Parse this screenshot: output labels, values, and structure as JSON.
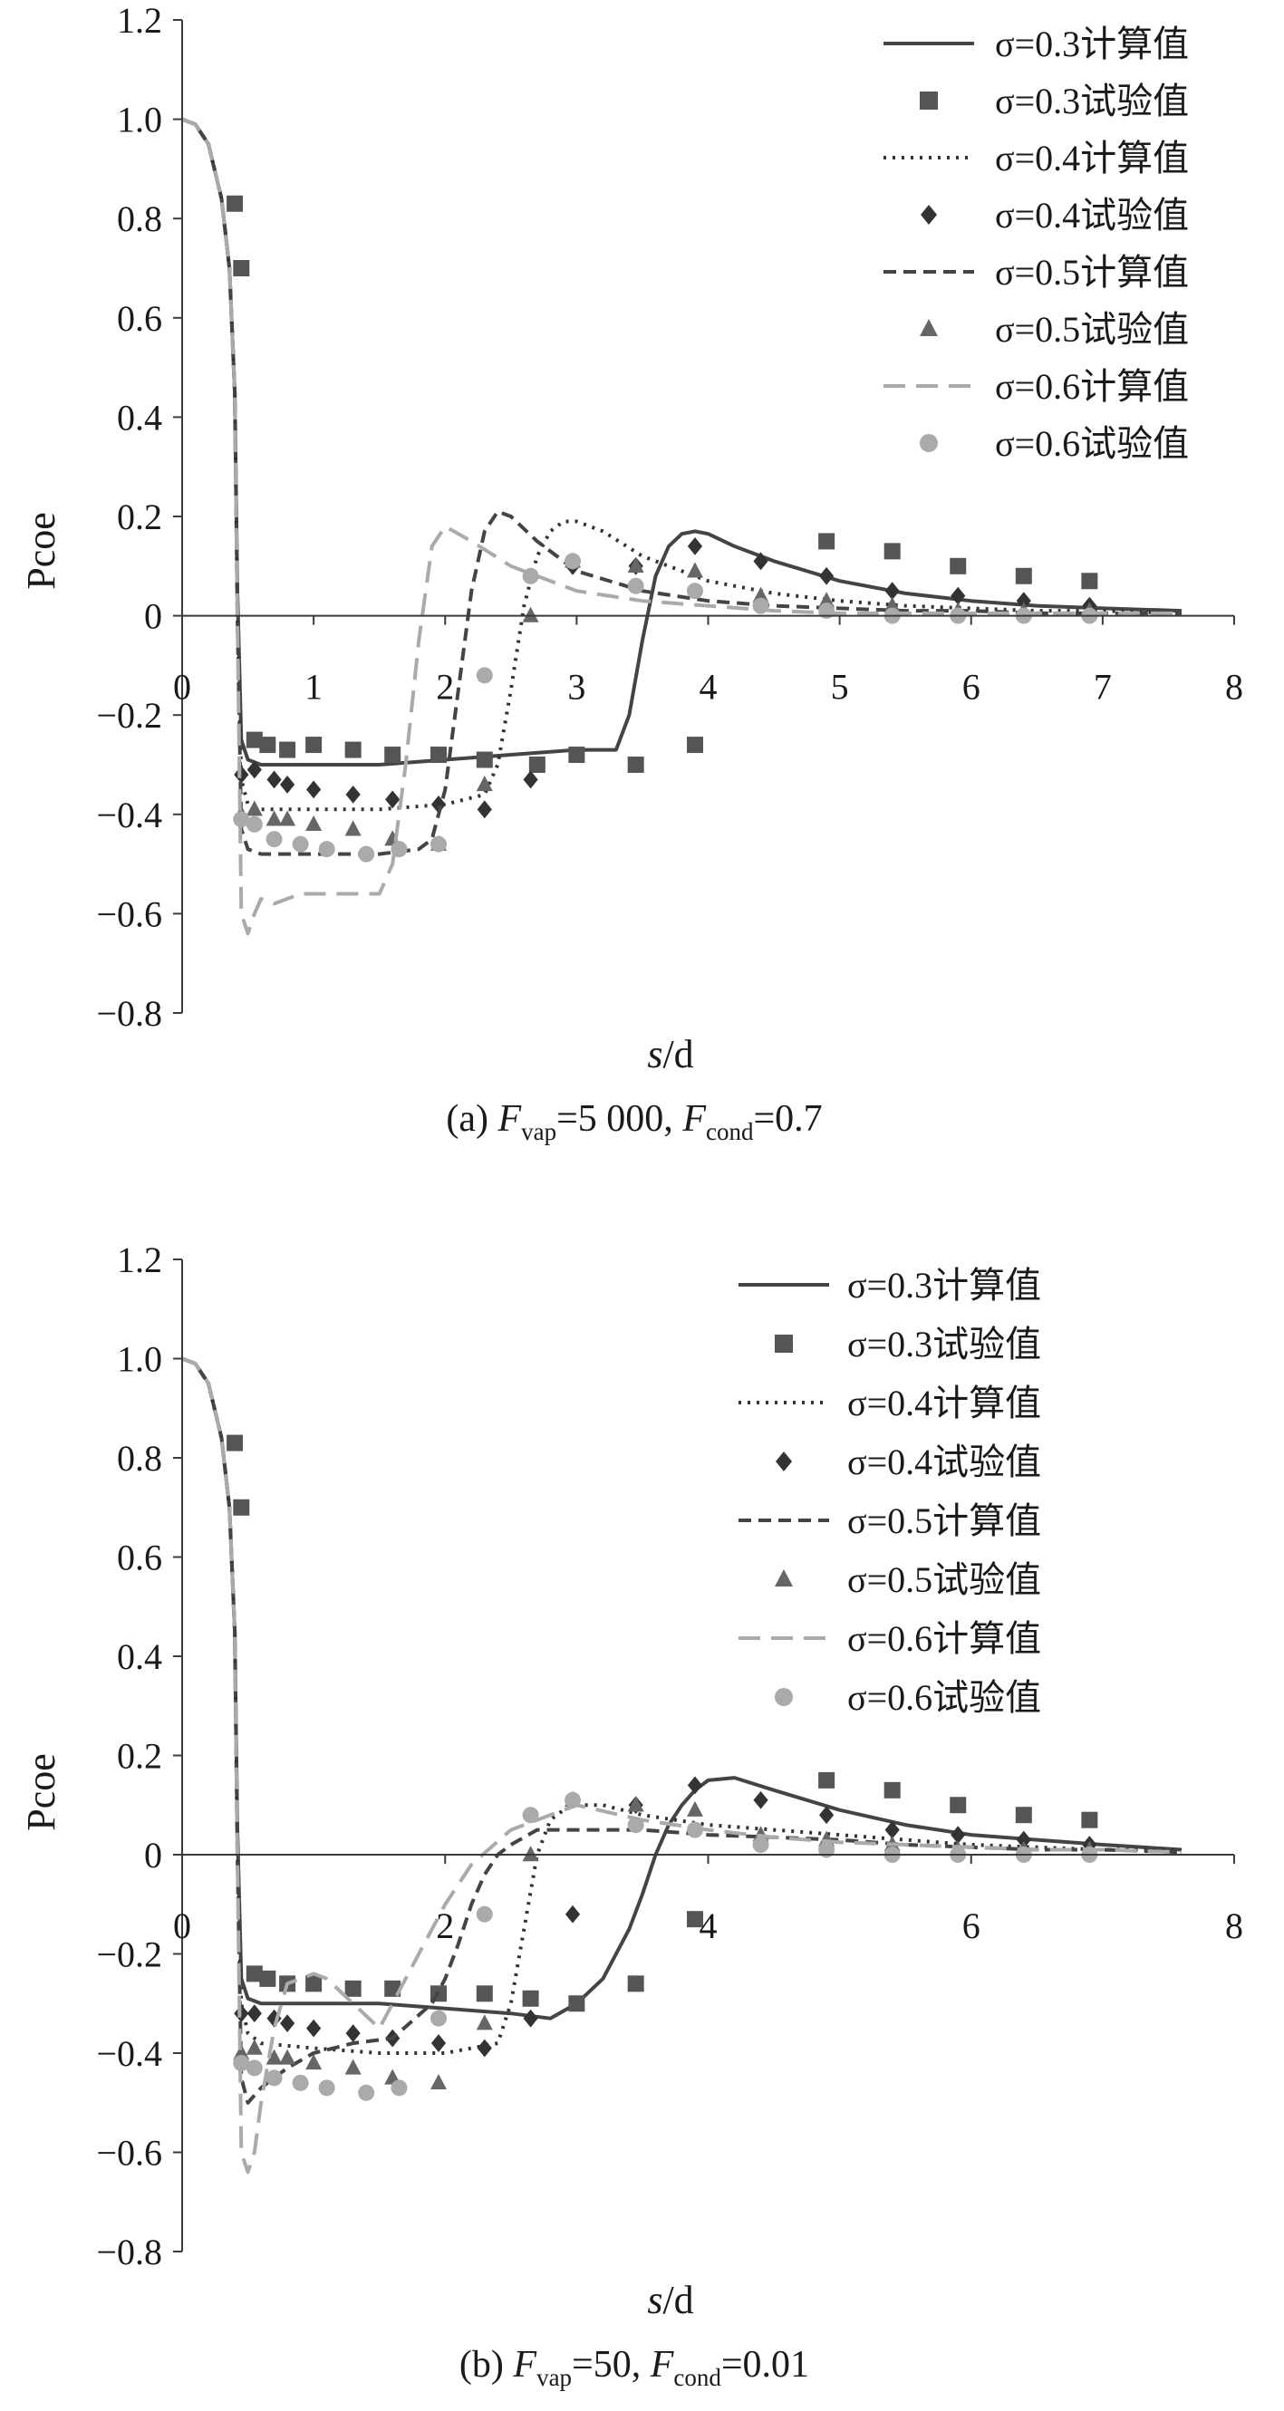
{
  "figure": {
    "panels": [
      {
        "caption": {
          "prefix": "(a) ",
          "f1": "F",
          "f1_sub": "vap",
          "mid": "=5 000,  ",
          "f2": "F",
          "f2_sub": "cond",
          "suffix": "=0.7"
        }
      },
      {
        "caption": {
          "prefix": "(b) ",
          "f1": "F",
          "f1_sub": "vap",
          "mid": "=50,  ",
          "f2": "F",
          "f2_sub": "cond",
          "suffix": "=0.01"
        }
      }
    ]
  },
  "chart_data": [
    {
      "type": "line",
      "title": "",
      "xlabel": "s/d",
      "xlabel_italic": "s",
      "xlabel_rest": "/d",
      "ylabel": "Pcoe",
      "xlim": [
        0,
        8
      ],
      "ylim": [
        -0.8,
        1.2
      ],
      "xticks": [
        0,
        1,
        2,
        3,
        4,
        5,
        6,
        7,
        8
      ],
      "yticks": [
        1.2,
        1.0,
        0.8,
        0.6,
        0.4,
        0.2,
        0,
        -0.2,
        -0.4,
        -0.6,
        -0.8
      ],
      "ytick_labels": [
        "1.2",
        "1.0",
        "0.8",
        "0.6",
        "0.4",
        "0.2",
        "0",
        "−0.2",
        "−0.4",
        "−0.6",
        "−0.8"
      ],
      "grid": false,
      "legend_position": "top-right",
      "series": [
        {
          "name": "σ=0.3计算值",
          "kind": "line",
          "style": "solid",
          "color": "#444444",
          "x": [
            0,
            0.1,
            0.2,
            0.3,
            0.36,
            0.4,
            0.42,
            0.45,
            0.5,
            0.6,
            1.0,
            1.5,
            2.0,
            2.5,
            3.0,
            3.2,
            3.3,
            3.4,
            3.5,
            3.6,
            3.7,
            3.8,
            3.9,
            4.0,
            4.2,
            4.5,
            5.0,
            5.5,
            6.0,
            6.5,
            7.0,
            7.6
          ],
          "y": [
            1.0,
            0.99,
            0.95,
            0.84,
            0.7,
            0.45,
            0.05,
            -0.25,
            -0.29,
            -0.3,
            -0.3,
            -0.3,
            -0.29,
            -0.28,
            -0.27,
            -0.27,
            -0.27,
            -0.2,
            -0.05,
            0.08,
            0.14,
            0.165,
            0.17,
            0.165,
            0.14,
            0.11,
            0.07,
            0.045,
            0.03,
            0.02,
            0.015,
            0.01
          ]
        },
        {
          "name": "σ=0.3试验值",
          "kind": "marker",
          "marker": "square",
          "color": "#555555",
          "x": [
            0.4,
            0.45,
            0.55,
            0.65,
            0.8,
            1.0,
            1.3,
            1.6,
            1.95,
            2.3,
            2.7,
            3.0,
            3.45,
            3.9,
            4.9,
            5.4,
            5.9,
            6.4,
            6.9
          ],
          "y": [
            0.83,
            0.7,
            -0.25,
            -0.26,
            -0.27,
            -0.26,
            -0.27,
            -0.28,
            -0.28,
            -0.29,
            -0.3,
            -0.28,
            -0.3,
            -0.26,
            0.15,
            0.13,
            0.1,
            0.08,
            0.07
          ]
        },
        {
          "name": "σ=0.4计算值",
          "kind": "line",
          "style": "dotted",
          "color": "#333333",
          "x": [
            0,
            0.1,
            0.2,
            0.3,
            0.36,
            0.4,
            0.42,
            0.45,
            0.5,
            0.6,
            1.0,
            1.5,
            2.0,
            2.3,
            2.4,
            2.5,
            2.6,
            2.7,
            2.8,
            2.9,
            3.0,
            3.2,
            3.5,
            4.0,
            4.5,
            5.0,
            5.5,
            6.0,
            6.5,
            7.0,
            7.6
          ],
          "y": [
            1.0,
            0.99,
            0.95,
            0.84,
            0.7,
            0.45,
            0.0,
            -0.33,
            -0.38,
            -0.39,
            -0.39,
            -0.39,
            -0.38,
            -0.36,
            -0.3,
            -0.15,
            0.02,
            0.12,
            0.17,
            0.19,
            0.19,
            0.17,
            0.12,
            0.07,
            0.045,
            0.03,
            0.02,
            0.015,
            0.01,
            0.01,
            0.005
          ]
        },
        {
          "name": "σ=0.4试验值",
          "kind": "marker",
          "marker": "diamond",
          "color": "#333333",
          "x": [
            0.45,
            0.55,
            0.7,
            0.8,
            1.0,
            1.3,
            1.6,
            1.95,
            2.3,
            2.65,
            2.97,
            3.45,
            3.9,
            4.4,
            4.9,
            5.4,
            5.9,
            6.4,
            6.9
          ],
          "y": [
            -0.32,
            -0.31,
            -0.33,
            -0.34,
            -0.35,
            -0.36,
            -0.37,
            -0.38,
            -0.39,
            -0.33,
            0.1,
            0.1,
            0.14,
            0.11,
            0.08,
            0.05,
            0.04,
            0.03,
            0.02
          ]
        },
        {
          "name": "σ=0.5计算值",
          "kind": "line",
          "style": "dashed",
          "color": "#444444",
          "x": [
            0,
            0.1,
            0.2,
            0.3,
            0.36,
            0.4,
            0.42,
            0.45,
            0.5,
            0.6,
            1.0,
            1.5,
            1.8,
            1.9,
            2.0,
            2.1,
            2.2,
            2.3,
            2.4,
            2.5,
            2.7,
            3.0,
            3.5,
            4.0,
            4.5,
            5.0,
            5.5,
            6.0,
            6.5,
            7.0,
            7.6
          ],
          "y": [
            1.0,
            0.99,
            0.95,
            0.84,
            0.7,
            0.45,
            0.0,
            -0.43,
            -0.47,
            -0.48,
            -0.48,
            -0.48,
            -0.47,
            -0.45,
            -0.35,
            -0.15,
            0.05,
            0.17,
            0.21,
            0.2,
            0.15,
            0.09,
            0.05,
            0.03,
            0.02,
            0.015,
            0.01,
            0.01,
            0.005,
            0.005,
            0.005
          ]
        },
        {
          "name": "σ=0.5试验值",
          "kind": "marker",
          "marker": "triangle",
          "color": "#666666",
          "x": [
            0.45,
            0.55,
            0.7,
            0.8,
            1.0,
            1.3,
            1.6,
            1.95,
            2.3,
            2.65,
            2.97,
            3.45,
            3.9,
            4.4,
            4.9,
            5.4,
            5.9,
            6.4,
            6.9
          ],
          "y": [
            -0.4,
            -0.39,
            -0.41,
            -0.41,
            -0.42,
            -0.43,
            -0.45,
            -0.46,
            -0.34,
            0.0,
            0.11,
            0.1,
            0.09,
            0.04,
            0.03,
            0.02,
            0.01,
            0.01,
            0.01
          ]
        },
        {
          "name": "σ=0.6计算值",
          "kind": "line",
          "style": "longdash",
          "color": "#aaaaaa",
          "x": [
            0,
            0.1,
            0.2,
            0.3,
            0.36,
            0.4,
            0.42,
            0.45,
            0.5,
            0.55,
            0.6,
            0.7,
            0.9,
            1.2,
            1.5,
            1.6,
            1.7,
            1.8,
            1.9,
            2.0,
            2.2,
            2.5,
            3.0,
            3.5,
            4.0,
            4.5,
            5.0,
            5.5,
            6.0,
            6.5,
            7.0,
            7.6
          ],
          "y": [
            1.0,
            0.99,
            0.95,
            0.84,
            0.7,
            0.45,
            0.0,
            -0.6,
            -0.64,
            -0.6,
            -0.57,
            -0.58,
            -0.56,
            -0.56,
            -0.56,
            -0.5,
            -0.3,
            -0.05,
            0.14,
            0.18,
            0.15,
            0.1,
            0.05,
            0.03,
            0.02,
            0.01,
            0.005,
            0.005,
            0.005,
            0.005,
            0.005,
            0.005
          ]
        },
        {
          "name": "σ=0.6试验值",
          "kind": "marker",
          "marker": "circle",
          "color": "#aaaaaa",
          "x": [
            0.45,
            0.55,
            0.7,
            0.9,
            1.1,
            1.4,
            1.65,
            1.95,
            2.3,
            2.65,
            2.97,
            3.45,
            3.9,
            4.4,
            4.9,
            5.4,
            5.9,
            6.4,
            6.9
          ],
          "y": [
            -0.41,
            -0.42,
            -0.45,
            -0.46,
            -0.47,
            -0.48,
            -0.47,
            -0.46,
            -0.12,
            0.08,
            0.11,
            0.06,
            0.05,
            0.02,
            0.01,
            0.0,
            0.0,
            0.0,
            0.0
          ]
        }
      ]
    },
    {
      "type": "line",
      "title": "",
      "xlabel": "s/d",
      "xlabel_italic": "s",
      "xlabel_rest": "/d",
      "ylabel": "Pcoe",
      "xlim": [
        0,
        8
      ],
      "ylim": [
        -0.8,
        1.2
      ],
      "xticks": [
        0,
        2,
        4,
        6,
        8
      ],
      "yticks": [
        1.2,
        1.0,
        0.8,
        0.6,
        0.4,
        0.2,
        0,
        -0.2,
        -0.4,
        -0.6,
        -0.8
      ],
      "ytick_labels": [
        "1.2",
        "1.0",
        "0.8",
        "0.6",
        "0.4",
        "0.2",
        "0",
        "−0.2",
        "−0.4",
        "−0.6",
        "−0.8"
      ],
      "grid": false,
      "legend_position": "top-right",
      "series": [
        {
          "name": "σ=0.3计算值",
          "kind": "line",
          "style": "solid",
          "color": "#444444",
          "x": [
            0,
            0.1,
            0.2,
            0.3,
            0.36,
            0.4,
            0.42,
            0.45,
            0.5,
            0.6,
            1.0,
            1.5,
            2.0,
            2.5,
            2.8,
            3.0,
            3.2,
            3.4,
            3.5,
            3.6,
            3.7,
            3.8,
            3.9,
            4.0,
            4.2,
            4.5,
            5.0,
            5.5,
            6.0,
            6.5,
            7.0,
            7.6
          ],
          "y": [
            1.0,
            0.99,
            0.95,
            0.84,
            0.7,
            0.45,
            0.05,
            -0.25,
            -0.29,
            -0.3,
            -0.3,
            -0.3,
            -0.31,
            -0.32,
            -0.33,
            -0.3,
            -0.25,
            -0.15,
            -0.08,
            0.0,
            0.06,
            0.1,
            0.13,
            0.15,
            0.155,
            0.13,
            0.09,
            0.06,
            0.04,
            0.03,
            0.02,
            0.01
          ]
        },
        {
          "name": "σ=0.3试验值",
          "kind": "marker",
          "marker": "square",
          "color": "#555555",
          "x": [
            0.4,
            0.45,
            0.55,
            0.65,
            0.8,
            1.0,
            1.3,
            1.6,
            1.95,
            2.3,
            2.65,
            3.0,
            3.45,
            3.9,
            4.9,
            5.4,
            5.9,
            6.4,
            6.9
          ],
          "y": [
            0.83,
            0.7,
            -0.24,
            -0.25,
            -0.26,
            -0.26,
            -0.27,
            -0.27,
            -0.28,
            -0.28,
            -0.29,
            -0.3,
            -0.26,
            -0.13,
            0.15,
            0.13,
            0.1,
            0.08,
            0.07
          ]
        },
        {
          "name": "σ=0.4计算值",
          "kind": "line",
          "style": "dotted",
          "color": "#333333",
          "x": [
            0,
            0.1,
            0.2,
            0.3,
            0.36,
            0.4,
            0.42,
            0.45,
            0.5,
            0.6,
            1.0,
            1.5,
            2.0,
            2.4,
            2.5,
            2.6,
            2.7,
            2.8,
            2.9,
            3.0,
            3.2,
            3.5,
            4.0,
            4.5,
            5.0,
            5.5,
            6.0,
            6.5,
            7.0,
            7.6
          ],
          "y": [
            1.0,
            0.99,
            0.95,
            0.84,
            0.7,
            0.45,
            0.0,
            -0.3,
            -0.36,
            -0.38,
            -0.39,
            -0.4,
            -0.4,
            -0.38,
            -0.3,
            -0.15,
            0.0,
            0.07,
            0.09,
            0.1,
            0.1,
            0.08,
            0.06,
            0.05,
            0.04,
            0.03,
            0.02,
            0.015,
            0.01,
            0.01
          ]
        },
        {
          "name": "σ=0.4试验值",
          "kind": "marker",
          "marker": "diamond",
          "color": "#333333",
          "x": [
            0.45,
            0.55,
            0.7,
            0.8,
            1.0,
            1.3,
            1.6,
            1.95,
            2.3,
            2.65,
            2.97,
            3.45,
            3.9,
            4.4,
            4.9,
            5.4,
            5.9,
            6.4,
            6.9
          ],
          "y": [
            -0.32,
            -0.32,
            -0.33,
            -0.34,
            -0.35,
            -0.36,
            -0.37,
            -0.38,
            -0.39,
            -0.33,
            -0.12,
            0.1,
            0.14,
            0.11,
            0.08,
            0.05,
            0.04,
            0.03,
            0.02
          ]
        },
        {
          "name": "σ=0.5计算值",
          "kind": "line",
          "style": "dashed",
          "color": "#444444",
          "x": [
            0,
            0.1,
            0.2,
            0.3,
            0.36,
            0.4,
            0.42,
            0.45,
            0.5,
            0.6,
            0.8,
            1.0,
            1.3,
            1.6,
            1.9,
            2.0,
            2.1,
            2.2,
            2.3,
            2.4,
            2.5,
            2.7,
            3.0,
            3.5,
            4.0,
            4.5,
            5.0,
            5.5,
            6.0,
            6.5,
            7.0,
            7.6
          ],
          "y": [
            1.0,
            0.99,
            0.95,
            0.84,
            0.7,
            0.45,
            0.0,
            -0.45,
            -0.5,
            -0.47,
            -0.43,
            -0.4,
            -0.38,
            -0.37,
            -0.3,
            -0.25,
            -0.18,
            -0.1,
            -0.04,
            0.0,
            0.02,
            0.05,
            0.05,
            0.05,
            0.04,
            0.035,
            0.03,
            0.02,
            0.015,
            0.01,
            0.01,
            0.005
          ]
        },
        {
          "name": "σ=0.5试验值",
          "kind": "marker",
          "marker": "triangle",
          "color": "#666666",
          "x": [
            0.45,
            0.55,
            0.7,
            0.8,
            1.0,
            1.3,
            1.6,
            1.95,
            2.3,
            2.65,
            2.97,
            3.45,
            3.9,
            4.4,
            4.9,
            5.4,
            5.9,
            6.4,
            6.9
          ],
          "y": [
            -0.4,
            -0.39,
            -0.41,
            -0.41,
            -0.42,
            -0.43,
            -0.45,
            -0.46,
            -0.34,
            0.0,
            0.11,
            0.1,
            0.09,
            0.04,
            0.03,
            0.02,
            0.01,
            0.01,
            0.01
          ]
        },
        {
          "name": "σ=0.6计算值",
          "kind": "line",
          "style": "longdash",
          "color": "#aaaaaa",
          "x": [
            0,
            0.1,
            0.2,
            0.3,
            0.36,
            0.4,
            0.42,
            0.45,
            0.5,
            0.55,
            0.6,
            0.7,
            0.8,
            0.9,
            1.0,
            1.1,
            1.3,
            1.5,
            1.6,
            1.8,
            2.0,
            2.2,
            2.5,
            3.0,
            3.5,
            4.0,
            4.5,
            5.0,
            5.5,
            6.0,
            6.5,
            7.0,
            7.6
          ],
          "y": [
            1.0,
            0.99,
            0.95,
            0.84,
            0.7,
            0.45,
            0.0,
            -0.6,
            -0.64,
            -0.6,
            -0.5,
            -0.35,
            -0.26,
            -0.25,
            -0.24,
            -0.25,
            -0.3,
            -0.35,
            -0.3,
            -0.2,
            -0.1,
            -0.02,
            0.05,
            0.1,
            0.07,
            0.05,
            0.035,
            0.025,
            0.02,
            0.015,
            0.01,
            0.01,
            0.005
          ]
        },
        {
          "name": "σ=0.6试验值",
          "kind": "marker",
          "marker": "circle",
          "color": "#aaaaaa",
          "x": [
            0.45,
            0.55,
            0.7,
            0.9,
            1.1,
            1.4,
            1.65,
            1.95,
            2.3,
            2.65,
            2.97,
            3.45,
            3.9,
            4.4,
            4.9,
            5.4,
            5.9,
            6.4,
            6.9
          ],
          "y": [
            -0.42,
            -0.43,
            -0.45,
            -0.46,
            -0.47,
            -0.48,
            -0.47,
            -0.33,
            -0.12,
            0.08,
            0.11,
            0.06,
            0.05,
            0.02,
            0.01,
            0.0,
            0.0,
            0.0,
            0.0
          ]
        }
      ]
    }
  ]
}
